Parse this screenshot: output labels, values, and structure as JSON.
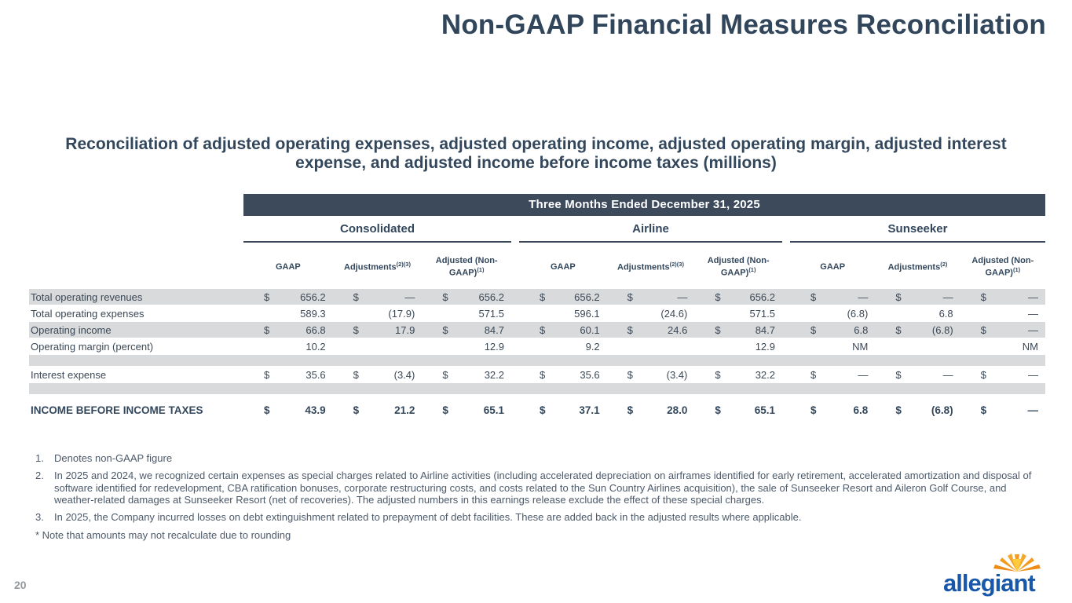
{
  "title": "Non-GAAP Financial Measures Reconciliation",
  "subtitle": "Reconciliation of adjusted operating expenses, adjusted operating income, adjusted operating margin, adjusted interest expense, and adjusted income before income taxes (millions)",
  "colors": {
    "band_bg": "#3d4a5c",
    "shaded_row": "#d8dadb",
    "heading_text": "#31455b",
    "logo_blue": "#1958a8",
    "sun_orange": "#f49b1d",
    "sun_yellow": "#ffcb3d"
  },
  "table": {
    "period_header": "Three Months Ended December 31, 2025",
    "groups": [
      {
        "name": "Consolidated",
        "cols": [
          {
            "label": "GAAP",
            "sup": ""
          },
          {
            "label": "Adjustments",
            "sup": "(2)(3)"
          },
          {
            "label": "Adjusted (Non-GAAP)",
            "sup": "(1)"
          }
        ]
      },
      {
        "name": "Airline",
        "cols": [
          {
            "label": "GAAP",
            "sup": ""
          },
          {
            "label": "Adjustments",
            "sup": "(2)(3)"
          },
          {
            "label": "Adjusted (Non-GAAP)",
            "sup": "(1)"
          }
        ]
      },
      {
        "name": "Sunseeker",
        "cols": [
          {
            "label": "GAAP",
            "sup": ""
          },
          {
            "label": "Adjustments",
            "sup": "(2)"
          },
          {
            "label": "Adjusted (Non-GAAP)",
            "sup": "(1)"
          }
        ]
      }
    ],
    "rows": [
      {
        "label": "Total operating revenues",
        "shaded": true,
        "bold": false,
        "spacer": false,
        "cells": [
          {
            "d": "$",
            "v": "656.2"
          },
          {
            "d": "$",
            "v": "—"
          },
          {
            "d": "$",
            "v": "656.2"
          },
          {
            "d": "$",
            "v": "656.2"
          },
          {
            "d": "$",
            "v": "—"
          },
          {
            "d": "$",
            "v": "656.2"
          },
          {
            "d": "$",
            "v": "—"
          },
          {
            "d": "$",
            "v": "—"
          },
          {
            "d": "$",
            "v": "—"
          }
        ]
      },
      {
        "label": "Total operating expenses",
        "shaded": false,
        "bold": false,
        "spacer": false,
        "cells": [
          {
            "d": "",
            "v": "589.3"
          },
          {
            "d": "",
            "v": "(17.9)"
          },
          {
            "d": "",
            "v": "571.5"
          },
          {
            "d": "",
            "v": "596.1"
          },
          {
            "d": "",
            "v": "(24.6)"
          },
          {
            "d": "",
            "v": "571.5"
          },
          {
            "d": "",
            "v": "(6.8)"
          },
          {
            "d": "",
            "v": "6.8"
          },
          {
            "d": "",
            "v": "—"
          }
        ]
      },
      {
        "label": "Operating income",
        "shaded": true,
        "bold": false,
        "spacer": false,
        "cells": [
          {
            "d": "$",
            "v": "66.8"
          },
          {
            "d": "$",
            "v": "17.9"
          },
          {
            "d": "$",
            "v": "84.7"
          },
          {
            "d": "$",
            "v": "60.1"
          },
          {
            "d": "$",
            "v": "24.6"
          },
          {
            "d": "$",
            "v": "84.7"
          },
          {
            "d": "$",
            "v": "6.8"
          },
          {
            "d": "$",
            "v": "(6.8)"
          },
          {
            "d": "$",
            "v": "—"
          }
        ]
      },
      {
        "label": "Operating margin (percent)",
        "shaded": false,
        "bold": false,
        "spacer": false,
        "cells": [
          {
            "d": "",
            "v": "10.2"
          },
          {
            "d": "",
            "v": ""
          },
          {
            "d": "",
            "v": "12.9"
          },
          {
            "d": "",
            "v": "9.2"
          },
          {
            "d": "",
            "v": ""
          },
          {
            "d": "",
            "v": "12.9"
          },
          {
            "d": "",
            "v": "NM"
          },
          {
            "d": "",
            "v": ""
          },
          {
            "d": "",
            "v": "NM"
          }
        ]
      },
      {
        "label": "",
        "shaded": true,
        "bold": false,
        "spacer": true,
        "cells": []
      },
      {
        "label": "Interest expense",
        "shaded": false,
        "bold": false,
        "spacer": false,
        "cells": [
          {
            "d": "$",
            "v": "35.6"
          },
          {
            "d": "$",
            "v": "(3.4)"
          },
          {
            "d": "$",
            "v": "32.2"
          },
          {
            "d": "$",
            "v": "35.6"
          },
          {
            "d": "$",
            "v": "(3.4)"
          },
          {
            "d": "$",
            "v": "32.2"
          },
          {
            "d": "$",
            "v": "—"
          },
          {
            "d": "$",
            "v": "—"
          },
          {
            "d": "$",
            "v": "—"
          }
        ]
      },
      {
        "label": "",
        "shaded": true,
        "bold": false,
        "spacer": true,
        "cells": []
      },
      {
        "label": "INCOME BEFORE INCOME TAXES",
        "shaded": false,
        "bold": true,
        "spacer": false,
        "cells": [
          {
            "d": "$",
            "v": "43.9"
          },
          {
            "d": "$",
            "v": "21.2"
          },
          {
            "d": "$",
            "v": "65.1"
          },
          {
            "d": "$",
            "v": "37.1"
          },
          {
            "d": "$",
            "v": "28.0"
          },
          {
            "d": "$",
            "v": "65.1"
          },
          {
            "d": "$",
            "v": "6.8"
          },
          {
            "d": "$",
            "v": "(6.8)"
          },
          {
            "d": "$",
            "v": "—"
          }
        ]
      }
    ]
  },
  "footnotes": [
    {
      "num": "1.",
      "text": "Denotes non-GAAP figure"
    },
    {
      "num": "2.",
      "text": "In 2025 and 2024, we recognized certain expenses as special charges related to Airline activities (including accelerated depreciation on airframes identified for early retirement, accelerated amortization and disposal of software identified for redevelopment, CBA ratification bonuses, corporate restructuring costs, and costs related to the Sun Country Airlines acquisition), the sale of Sunseeker Resort and Aileron Golf Course, and weather-related damages at Sunseeker Resort (net of recoveries). The adjusted numbers in this earnings release exclude the effect of these special charges."
    },
    {
      "num": "3.",
      "text": "In 2025, the Company incurred losses on debt extinguishment related to prepayment of debt facilities. These are added back in the adjusted results where applicable."
    }
  ],
  "rounding_note": "* Note that amounts may not recalculate due to rounding",
  "page_number": "20",
  "logo": {
    "brand": "allegiant"
  }
}
